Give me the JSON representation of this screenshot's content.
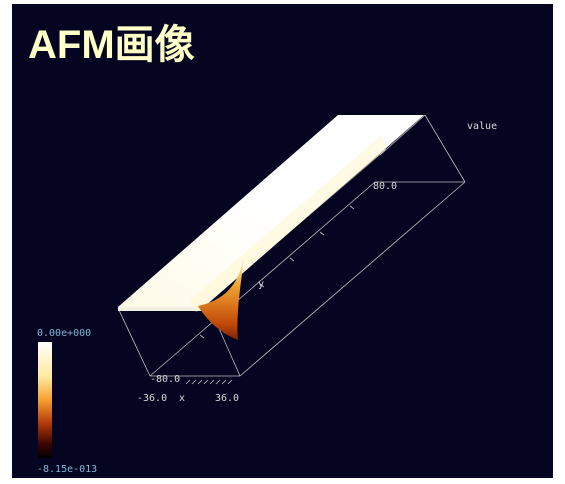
{
  "title": "AFM画像",
  "axes": {
    "value_label": "value",
    "y_max": "80.0",
    "y_label": "y",
    "y_min": "-80.0",
    "x_min": "-36.0",
    "x_label": "x",
    "x_max": "36.0"
  },
  "colorbar": {
    "max": "0.00e+000",
    "min": "-8.15e-013"
  }
}
